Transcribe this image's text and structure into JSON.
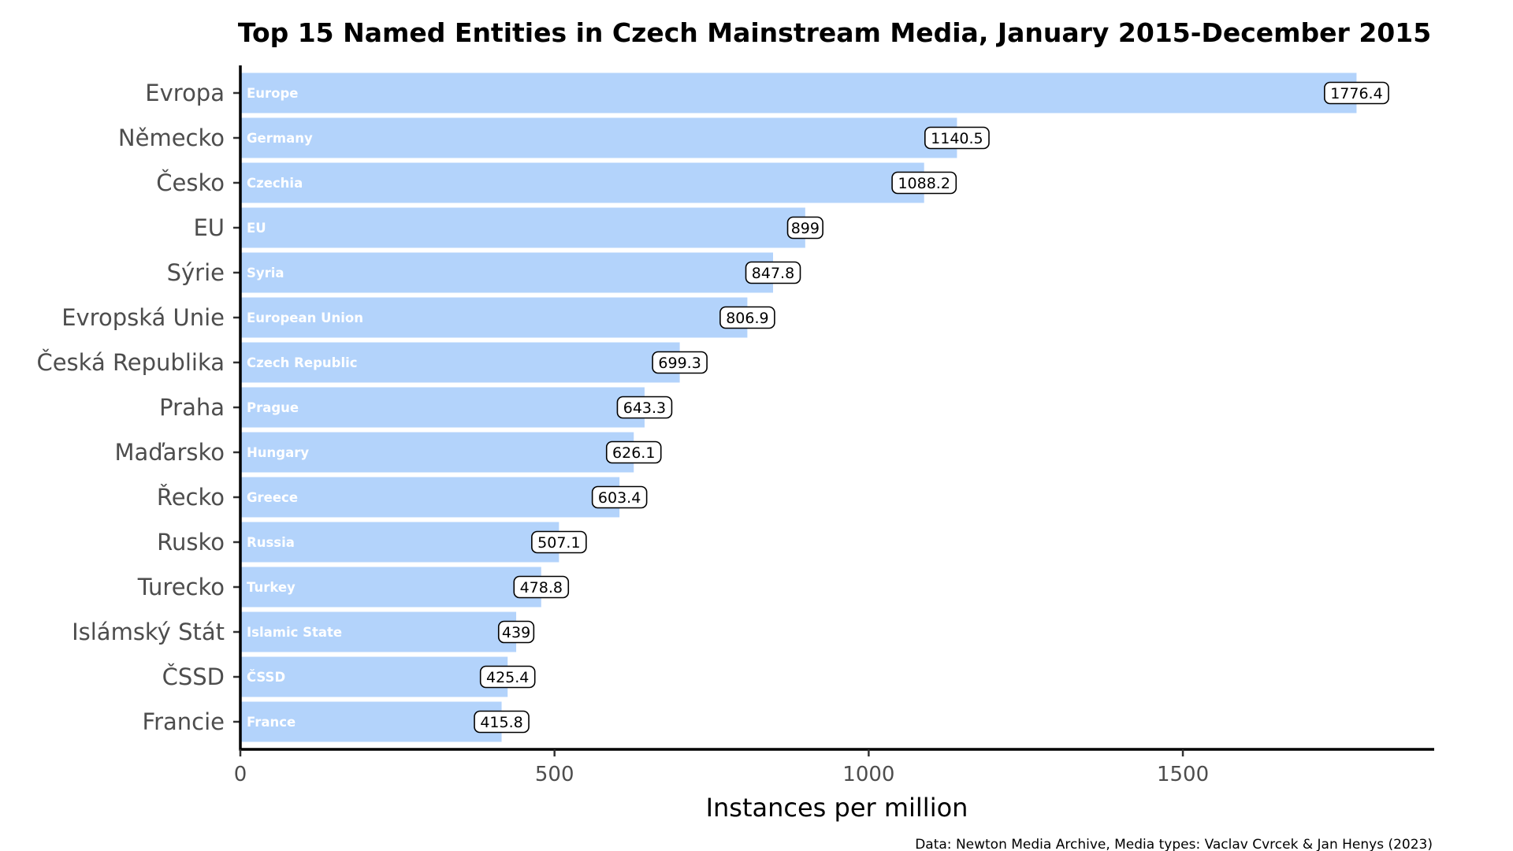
{
  "chart_data": {
    "type": "bar",
    "orientation": "horizontal",
    "title": "Top 15 Named Entities in Czech Mainstream Media, January 2015-December 2015",
    "xlabel": "Instances per million",
    "ylabel": "",
    "xlim": [
      0,
      1900
    ],
    "xticks": [
      0,
      500,
      1000,
      1500
    ],
    "grid": false,
    "bar_color": "#b3d3fb",
    "categories": [
      "Evropa",
      "Německo",
      "Česko",
      "EU",
      "Sýrie",
      "Evropská Unie",
      "Česká Republika",
      "Praha",
      "Maďarsko",
      "Řecko",
      "Rusko",
      "Turecko",
      "Islámský Stát",
      "ČSSD",
      "Francie"
    ],
    "translations": [
      "Europe",
      "Germany",
      "Czechia",
      "EU",
      "Syria",
      "European Union",
      "Czech Republic",
      "Prague",
      "Hungary",
      "Greece",
      "Russia",
      "Turkey",
      "Islamic State",
      "ČSSD",
      "France"
    ],
    "values": [
      1776.4,
      1140.5,
      1088.2,
      899,
      847.8,
      806.9,
      699.3,
      643.3,
      626.1,
      603.4,
      507.1,
      478.8,
      439,
      425.4,
      415.8
    ],
    "value_labels": [
      "1776.4",
      "1140.5",
      "1088.2",
      "899",
      "847.8",
      "806.9",
      "699.3",
      "643.3",
      "626.1",
      "603.4",
      "507.1",
      "478.8",
      "439",
      "425.4",
      "415.8"
    ],
    "caption": "Data: Newton Media Archive, Media types: Vaclav Cvrcek & Jan Henys (2023)"
  }
}
